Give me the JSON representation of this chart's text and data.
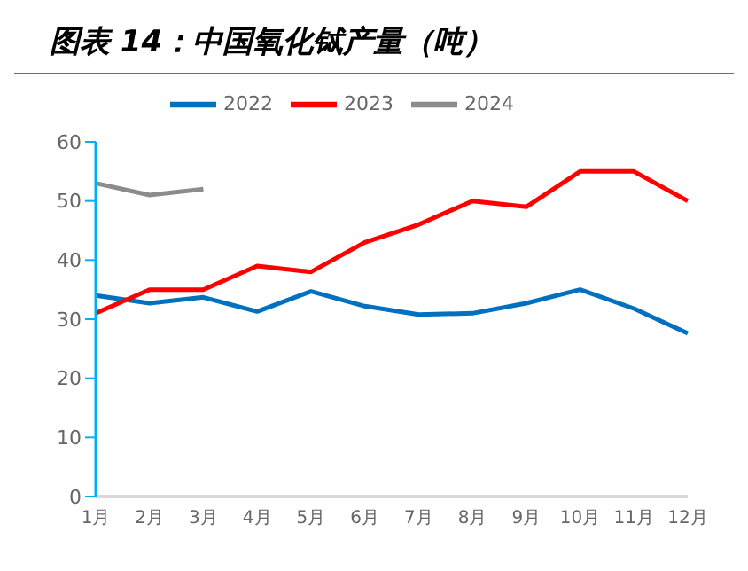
{
  "chart_data": {
    "type": "line",
    "title": "图表 14：中国氧化铽产量（吨）",
    "categories": [
      "1月",
      "2月",
      "3月",
      "4月",
      "5月",
      "6月",
      "7月",
      "8月",
      "9月",
      "10月",
      "11月",
      "12月"
    ],
    "series": [
      {
        "name": "2022",
        "color": "#0070c0",
        "values": [
          34,
          32.7,
          33.7,
          31.3,
          34.7,
          32.2,
          30.8,
          31,
          32.7,
          35,
          31.8,
          27.6
        ]
      },
      {
        "name": "2023",
        "color": "#ff0000",
        "values": [
          31,
          35,
          35,
          39,
          38,
          43,
          46,
          50,
          49,
          55,
          55,
          50
        ]
      },
      {
        "name": "2024",
        "color": "#8c8c8c",
        "values": [
          53,
          51,
          52,
          null,
          null,
          null,
          null,
          null,
          null,
          null,
          null,
          null
        ]
      }
    ],
    "ylim": [
      0,
      60
    ],
    "yticks": [
      0,
      10,
      20,
      30,
      40,
      50,
      60
    ],
    "grid": false,
    "legend": "top",
    "marker": "none",
    "line_style": "solid"
  }
}
